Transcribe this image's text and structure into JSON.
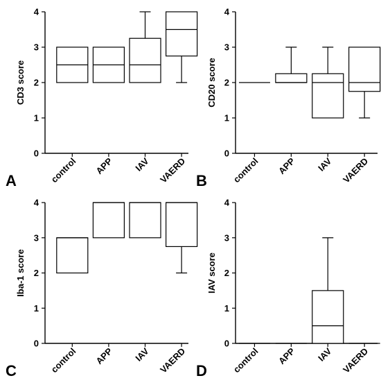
{
  "chart_data": [
    {
      "type": "box",
      "panel": "A",
      "ylabel": "CD3 score",
      "ylim": [
        0,
        4
      ],
      "yticks": [
        0,
        1,
        2,
        3,
        4
      ],
      "categories": [
        "control",
        "APP",
        "IAV",
        "VAERD"
      ],
      "boxes": [
        {
          "min": 2,
          "q1": 2,
          "median": 2.5,
          "q3": 3,
          "max": 3
        },
        {
          "min": 2,
          "q1": 2,
          "median": 2.5,
          "q3": 3,
          "max": 3
        },
        {
          "min": 2,
          "q1": 2,
          "median": 2.5,
          "q3": 3.25,
          "max": 4
        },
        {
          "min": 2,
          "q1": 2.75,
          "median": 3.5,
          "q3": 4,
          "max": 4
        }
      ]
    },
    {
      "type": "box",
      "panel": "B",
      "ylabel": "CD20 score",
      "ylim": [
        0,
        4
      ],
      "yticks": [
        0,
        1,
        2,
        3,
        4
      ],
      "categories": [
        "control",
        "APP",
        "IAV",
        "VAERD"
      ],
      "boxes": [
        {
          "min": 2,
          "q1": 2,
          "median": 2,
          "q3": 2,
          "max": 2
        },
        {
          "min": 2,
          "q1": 2,
          "median": 2,
          "q3": 2.25,
          "max": 3
        },
        {
          "min": 1,
          "q1": 1,
          "median": 2,
          "q3": 2.25,
          "max": 3
        },
        {
          "min": 1,
          "q1": 1.75,
          "median": 2,
          "q3": 3,
          "max": 3
        }
      ]
    },
    {
      "type": "box",
      "panel": "C",
      "ylabel": "Iba-1 score",
      "ylim": [
        0,
        4
      ],
      "yticks": [
        0,
        1,
        2,
        3,
        4
      ],
      "categories": [
        "control",
        "APP",
        "IAV",
        "VAERD"
      ],
      "boxes": [
        {
          "min": 2,
          "q1": 2,
          "median": 3,
          "q3": 3,
          "max": 3
        },
        {
          "min": 3,
          "q1": 3,
          "median": 4,
          "q3": 4,
          "max": 4
        },
        {
          "min": 3,
          "q1": 3,
          "median": 4,
          "q3": 4,
          "max": 4
        },
        {
          "min": 2,
          "q1": 2.75,
          "median": 4,
          "q3": 4,
          "max": 4
        }
      ]
    },
    {
      "type": "box",
      "panel": "D",
      "ylabel": "IAV score",
      "ylim": [
        0,
        4
      ],
      "yticks": [
        0,
        1,
        2,
        3,
        4
      ],
      "categories": [
        "control",
        "APP",
        "IAV",
        "VAERD"
      ],
      "boxes": [
        {
          "min": 0,
          "q1": 0,
          "median": 0,
          "q3": 0,
          "max": 0
        },
        {
          "min": 0,
          "q1": 0,
          "median": 0,
          "q3": 0,
          "max": 0
        },
        {
          "min": 0,
          "q1": 0,
          "median": 0.5,
          "q3": 1.5,
          "max": 3
        },
        {
          "min": 0,
          "q1": 0,
          "median": 0,
          "q3": 0,
          "max": 0
        }
      ]
    }
  ]
}
